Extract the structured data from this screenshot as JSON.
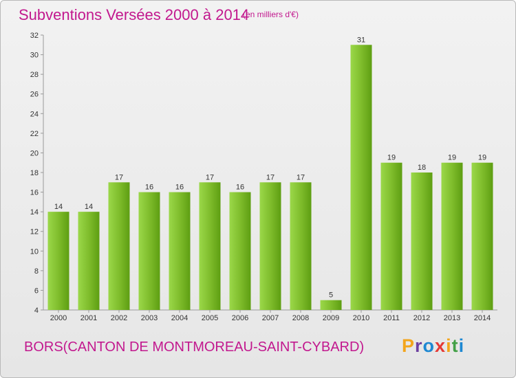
{
  "header": {
    "title": "Subventions Versées 2000 à 2014",
    "unit": "(en milliers d'€)"
  },
  "footer": {
    "location": "BORS(CANTON DE MONTMOREAU-SAINT-CYBARD)",
    "logo": "Proxiti"
  },
  "colors": {
    "title": "#c2188e",
    "bar_light": "#9bd84a",
    "bar_dark": "#5e9e12",
    "logo_letters": [
      "#f3a51c",
      "#6c3fa0",
      "#1e88d2",
      "#e53935",
      "#f3a51c",
      "#43a047",
      "#1e88d2"
    ]
  },
  "chart_data": {
    "type": "bar",
    "title": "Subventions Versées 2000 à 2014",
    "subtitle": "(en milliers d'€)",
    "categories": [
      "2000",
      "2001",
      "2002",
      "2003",
      "2004",
      "2005",
      "2006",
      "2007",
      "2008",
      "2009",
      "2010",
      "2011",
      "2012",
      "2013",
      "2014"
    ],
    "values": [
      14,
      14,
      17,
      16,
      16,
      17,
      16,
      17,
      17,
      5,
      31,
      19,
      18,
      19,
      19
    ],
    "data_labels": [
      "14",
      "14",
      "17",
      "16",
      "16",
      "17",
      "16",
      "17",
      "17",
      "5",
      "31",
      "19",
      "18",
      "19",
      "19"
    ],
    "yticks": [
      "4",
      "6",
      "8",
      "10",
      "12",
      "14",
      "16",
      "18",
      "20",
      "22",
      "24",
      "26",
      "28",
      "30",
      "32"
    ],
    "ytick_values": [
      4,
      6,
      8,
      10,
      12,
      14,
      16,
      18,
      20,
      22,
      24,
      26,
      28,
      30,
      32
    ],
    "ylim": [
      4,
      32
    ],
    "grid": false,
    "legend": "none"
  }
}
